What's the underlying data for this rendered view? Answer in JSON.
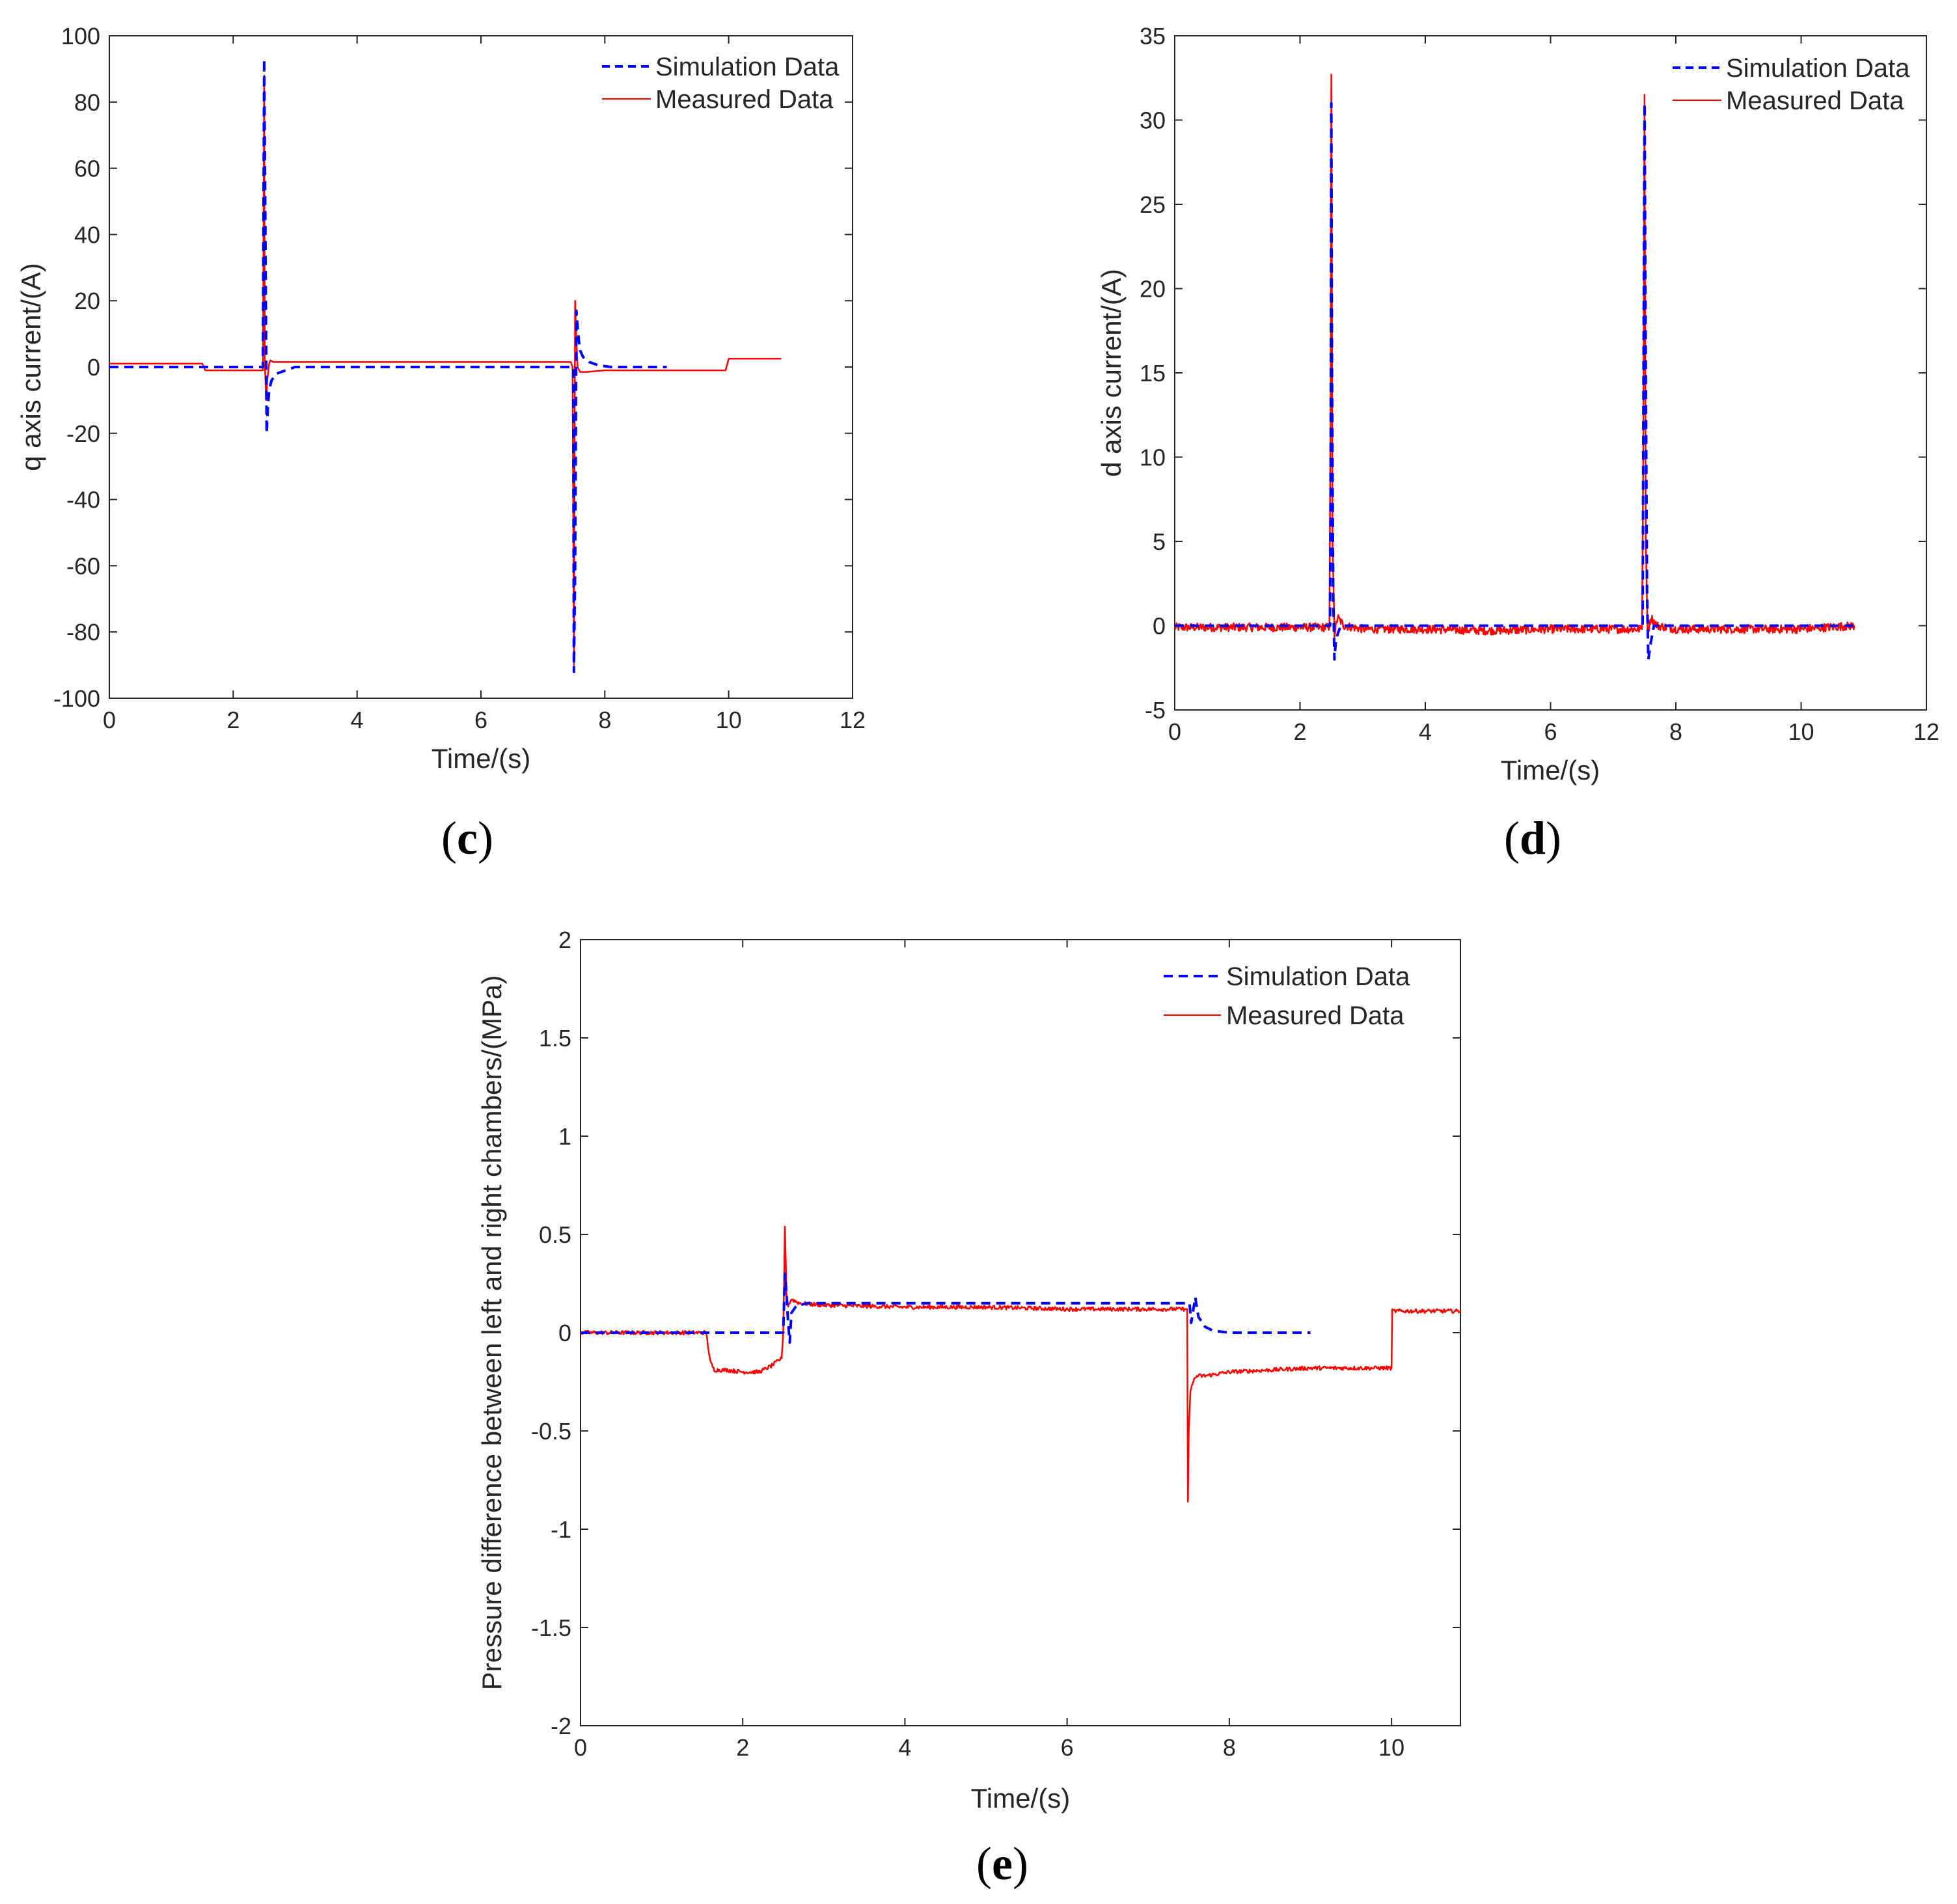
{
  "colors": {
    "simulation": "#0000ff",
    "measured": "#ff0000",
    "axis": "#262626"
  },
  "chart_data": [
    {
      "id": "c",
      "type": "line",
      "caption": "c",
      "xlabel": "Time/(s)",
      "ylabel": "q axis current/(A)",
      "xlim": [
        0,
        12
      ],
      "ylim": [
        -100,
        100
      ],
      "xticks": [
        0,
        2,
        4,
        6,
        8,
        10,
        12
      ],
      "yticks": [
        -100,
        -80,
        -60,
        -40,
        -20,
        0,
        20,
        40,
        60,
        80,
        100
      ],
      "legend_position": "top-right",
      "series": [
        {
          "name": "Simulation Data",
          "style": "dashed",
          "x": [
            0,
            1.5,
            2.48,
            2.49,
            2.5,
            2.52,
            2.54,
            2.56,
            2.58,
            2.62,
            2.7,
            2.85,
            3.0,
            4,
            6,
            7.48,
            7.49,
            7.5,
            7.52,
            7.54,
            7.56,
            7.58,
            7.6,
            7.65,
            7.75,
            7.9,
            8.1,
            9
          ],
          "y": [
            0,
            0,
            0,
            50,
            93,
            40,
            -20,
            -12,
            -7,
            -4,
            -2,
            -1,
            0,
            0,
            0,
            0,
            0,
            -92,
            -60,
            17,
            12,
            8,
            5,
            3,
            1.5,
            0.5,
            0,
            0
          ]
        },
        {
          "name": "Measured Data",
          "style": "solid",
          "x": [
            0,
            1.5,
            1.55,
            2.48,
            2.5,
            2.51,
            2.53,
            2.55,
            2.58,
            2.6,
            2.65,
            2.8,
            3.0,
            4,
            5,
            6,
            7.0,
            7.45,
            7.48,
            7.5,
            7.52,
            7.54,
            7.56,
            7.6,
            7.7,
            8,
            9,
            9.95,
            10.0,
            10.05,
            10.5,
            10.85
          ],
          "y": [
            1,
            1,
            -1,
            -1,
            88,
            2,
            -10,
            -4,
            1,
            2,
            1.5,
            1.5,
            1.5,
            1.5,
            1.5,
            1.5,
            1.5,
            1.5,
            0,
            -90,
            20,
            8,
            0,
            -1.5,
            -1.5,
            -1,
            -1,
            -1,
            2.5,
            2.5,
            2.5,
            2.5
          ]
        }
      ]
    },
    {
      "id": "d",
      "type": "line",
      "caption": "d",
      "xlabel": "Time/(s)",
      "ylabel": "d axis current/(A)",
      "xlim": [
        0,
        12
      ],
      "ylim": [
        -5,
        35
      ],
      "xticks": [
        0,
        2,
        4,
        6,
        8,
        10,
        12
      ],
      "yticks": [
        -5,
        0,
        5,
        10,
        15,
        20,
        25,
        30,
        35
      ],
      "legend_position": "top-right",
      "series": [
        {
          "name": "Simulation Data",
          "style": "dashed",
          "x": [
            0,
            2.48,
            2.49,
            2.5,
            2.51,
            2.53,
            2.55,
            2.57,
            2.6,
            2.65,
            2.8,
            3,
            7.46,
            7.47,
            7.48,
            7.5,
            7.52,
            7.54,
            7.56,
            7.6,
            7.65,
            7.8,
            8,
            9,
            10.85
          ],
          "y": [
            0,
            0,
            10,
            31,
            15,
            2,
            -2,
            -1,
            -0.5,
            0,
            0,
            0,
            0,
            0,
            10,
            31,
            15,
            2,
            -2,
            -1,
            0,
            0,
            0,
            0,
            0
          ]
        },
        {
          "name": "Measured Data",
          "style": "solid",
          "noise": 0.25,
          "x": [
            0,
            2.47,
            2.49,
            2.5,
            2.52,
            2.55,
            2.6,
            2.7,
            3,
            4,
            5,
            6,
            7,
            7.46,
            7.48,
            7.5,
            7.52,
            7.55,
            7.6,
            7.7,
            8,
            9,
            10,
            10.85
          ],
          "y": [
            -0.1,
            -0.1,
            15,
            32.7,
            5,
            -0.5,
            0.5,
            0,
            -0.2,
            -0.2,
            -0.3,
            -0.2,
            -0.2,
            -0.2,
            10,
            31.5,
            5,
            -0.5,
            0.5,
            0,
            -0.2,
            -0.2,
            -0.2,
            0
          ]
        }
      ]
    },
    {
      "id": "e",
      "type": "line",
      "caption": "e",
      "xlabel": "Time/(s)",
      "ylabel": "Pressure difference between left and right chambers/(MPa)",
      "xlim": [
        0,
        10.85
      ],
      "ylim": [
        -2,
        2
      ],
      "xticks": [
        0,
        2,
        4,
        6,
        8,
        10
      ],
      "yticks": [
        -2,
        -1.5,
        -1,
        -0.5,
        0,
        0.5,
        1,
        1.5,
        2
      ],
      "ytick_labels": [
        "-2",
        "-1.5",
        "-1",
        "-0.5",
        "0",
        "0.5",
        "1",
        "1.5",
        "2"
      ],
      "legend_position": "top-right",
      "series": [
        {
          "name": "Simulation Data",
          "style": "dashed",
          "x": [
            0,
            2.5,
            2.52,
            2.54,
            2.56,
            2.58,
            2.6,
            2.65,
            2.7,
            2.8,
            3.0,
            7.5,
            7.51,
            7.53,
            7.55,
            7.58,
            7.62,
            7.7,
            7.8,
            8.0,
            9.0
          ],
          "y": [
            0,
            0,
            0.3,
            0.2,
            0.05,
            -0.05,
            0.1,
            0.13,
            0.14,
            0.15,
            0.15,
            0.15,
            0.15,
            0.05,
            0.1,
            0.18,
            0.08,
            0.03,
            0.01,
            0,
            0
          ]
        },
        {
          "name": "Measured Data",
          "style": "solid",
          "noise": 0.01,
          "x": [
            0,
            1.55,
            1.6,
            1.65,
            1.8,
            2.0,
            2.2,
            2.35,
            2.48,
            2.5,
            2.52,
            2.54,
            2.56,
            2.6,
            2.7,
            3.0,
            4.0,
            5.0,
            6.0,
            7.0,
            7.45,
            7.48,
            7.49,
            7.5,
            7.52,
            7.55,
            7.6,
            7.7,
            8.0,
            9.0,
            9.5,
            10.0,
            10.01,
            10.2,
            10.5,
            10.85
          ],
          "y": [
            0,
            0,
            -0.15,
            -0.19,
            -0.19,
            -0.2,
            -0.2,
            -0.17,
            -0.13,
            0.0,
            0.54,
            0.2,
            0.14,
            0.17,
            0.15,
            0.14,
            0.13,
            0.13,
            0.12,
            0.12,
            0.12,
            0.12,
            -0.86,
            -0.5,
            -0.3,
            -0.25,
            -0.22,
            -0.22,
            -0.2,
            -0.18,
            -0.18,
            -0.18,
            0.11,
            0.11,
            0.11,
            0.11
          ]
        }
      ]
    }
  ]
}
